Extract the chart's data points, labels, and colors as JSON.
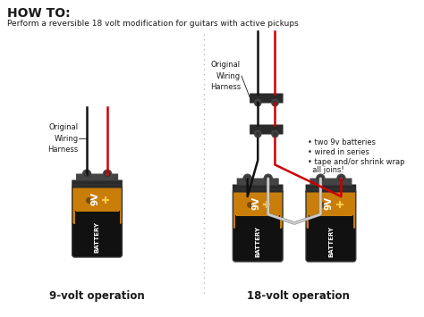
{
  "title": "HOW TO:",
  "subtitle": "Perform a reversible 18 volt modification for guitars with active pickups",
  "label_9v": "9-volt operation",
  "label_18v": "18-volt operation",
  "label_wiring": "Original\nWiring\nHarness",
  "bullet1": "• two 9v batteries",
  "bullet2": "• wired in series",
  "bullet3": "• tape and/or shrink wrap",
  "bullet4": "  all joins!",
  "bg_color": "#ffffff",
  "battery_orange": "#c97e0a",
  "battery_black": "#111111",
  "connector_dark": "#2a2a2a",
  "connector_mid": "#444444",
  "connector_gray": "#666666",
  "red_wire": "#cc0000",
  "black_wire": "#111111",
  "white_wire": "#cccccc",
  "divider_color": "#bbbbbb",
  "text_color": "#1a1a1a",
  "title_fontsize": 10,
  "subtitle_fontsize": 6.5,
  "label_fontsize": 8.5,
  "annotation_fontsize": 6.0
}
